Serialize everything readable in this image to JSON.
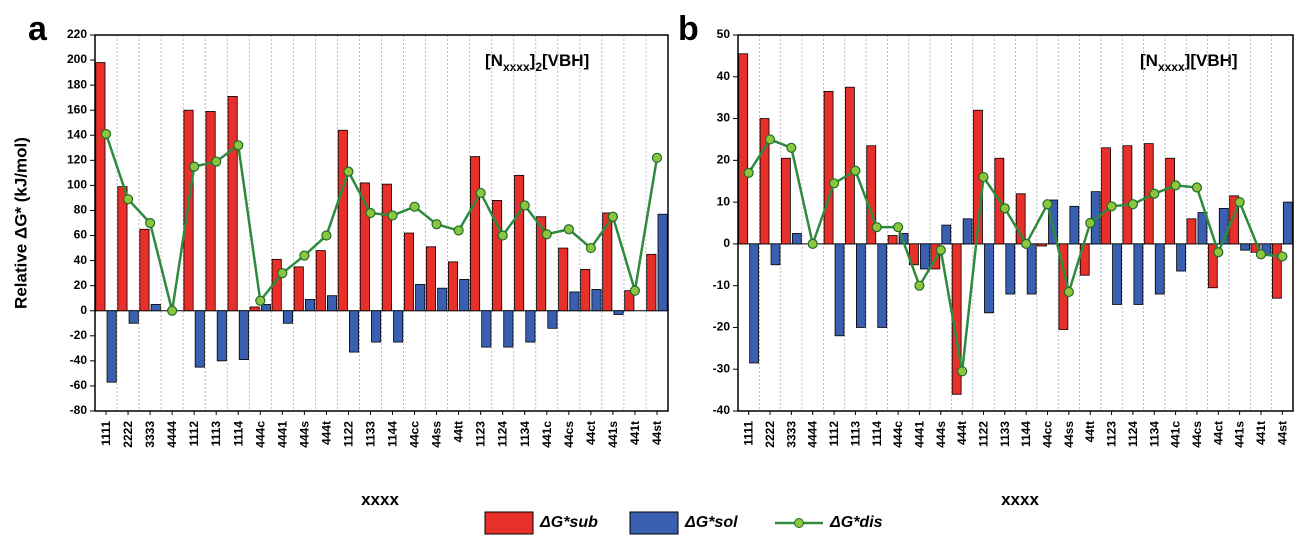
{
  "chart_data": [
    {
      "type": "bar",
      "panel": "a",
      "y_label": "Relative ΔG* (kJ/mol)",
      "x_label": "xxxx",
      "annotation": [
        "[N",
        "xxxx",
        "]",
        "2",
        "[VBH]"
      ],
      "categories": [
        "1111",
        "2222",
        "3333",
        "4444",
        "1112",
        "1113",
        "1114",
        "444c",
        "4441",
        "444s",
        "444t",
        "1122",
        "1133",
        "1144",
        "44cc",
        "44ss",
        "44tt",
        "1123",
        "1124",
        "1134",
        "441c",
        "44cs",
        "44ct",
        "441s",
        "441t",
        "44st"
      ],
      "ylim": [
        -80,
        220
      ],
      "yticks": [
        -80,
        -60,
        -40,
        -20,
        0,
        20,
        40,
        60,
        80,
        100,
        120,
        140,
        160,
        180,
        200,
        220
      ],
      "series": [
        {
          "name": "ΔG*sub",
          "color": "#e8302a",
          "values": [
            198,
            99,
            65,
            0,
            160,
            159,
            171,
            3,
            41,
            35,
            48,
            144,
            102,
            101,
            62,
            51,
            39,
            123,
            88,
            108,
            75,
            50,
            33,
            78,
            16,
            45
          ]
        },
        {
          "name": "ΔG*sol",
          "color": "#3a5fb0",
          "values": [
            -57,
            -10,
            5,
            0,
            -45,
            -40,
            -39,
            5,
            -10,
            9,
            12,
            -33,
            -25,
            -25,
            21,
            18,
            25,
            -29,
            -29,
            -25,
            -14,
            15,
            17,
            -3,
            0,
            77
          ]
        },
        {
          "name": "ΔG*dis",
          "color": "#2e8b3e",
          "values": [
            141,
            89,
            70,
            0,
            115,
            119,
            132,
            8,
            30,
            44,
            60,
            111,
            78,
            76,
            83,
            69,
            64,
            94,
            60,
            84,
            61,
            65,
            50,
            75,
            16,
            122
          ]
        }
      ]
    },
    {
      "type": "bar",
      "panel": "b",
      "x_label": "xxxx",
      "annotation": [
        "[N",
        "xxxx",
        "][VBH]"
      ],
      "categories": [
        "1111",
        "2222",
        "3333",
        "4444",
        "1112",
        "1113",
        "1114",
        "444c",
        "4441",
        "444s",
        "444t",
        "1122",
        "1133",
        "1144",
        "44cc",
        "44ss",
        "44tt",
        "1123",
        "1124",
        "1134",
        "441c",
        "44cs",
        "44ct",
        "441s",
        "441t",
        "44st"
      ],
      "ylim": [
        -40,
        50
      ],
      "yticks": [
        -40,
        -30,
        -20,
        -10,
        0,
        10,
        20,
        30,
        40,
        50
      ],
      "series": [
        {
          "color": "#e8302a",
          "values": [
            45.5,
            30,
            20.5,
            0,
            36.5,
            37.5,
            23.5,
            2,
            -5,
            -6,
            -36,
            32,
            20.5,
            12,
            -0.5,
            -20.5,
            -7.5,
            23,
            23.5,
            24,
            20.5,
            6,
            -10.5,
            11.5,
            -2,
            -13
          ]
        },
        {
          "color": "#3a5fb0",
          "values": [
            -28.5,
            -5,
            2.5,
            0,
            -22,
            -20,
            -20,
            2.5,
            -6,
            4.5,
            6,
            -16.5,
            -12,
            -12,
            10.5,
            9,
            12.5,
            -14.5,
            -14.5,
            -12,
            -6.5,
            7.5,
            8.5,
            -1.5,
            -2.5,
            10
          ]
        },
        {
          "color": "#2e8b3e",
          "values": [
            17,
            25,
            23,
            0,
            14.5,
            17.5,
            4,
            4,
            -10,
            -1.5,
            -30.5,
            16,
            8.5,
            0,
            9.5,
            -11.5,
            5,
            9,
            9.5,
            12,
            14,
            13.5,
            -2,
            10,
            -2.5,
            -3
          ]
        }
      ]
    }
  ]
}
